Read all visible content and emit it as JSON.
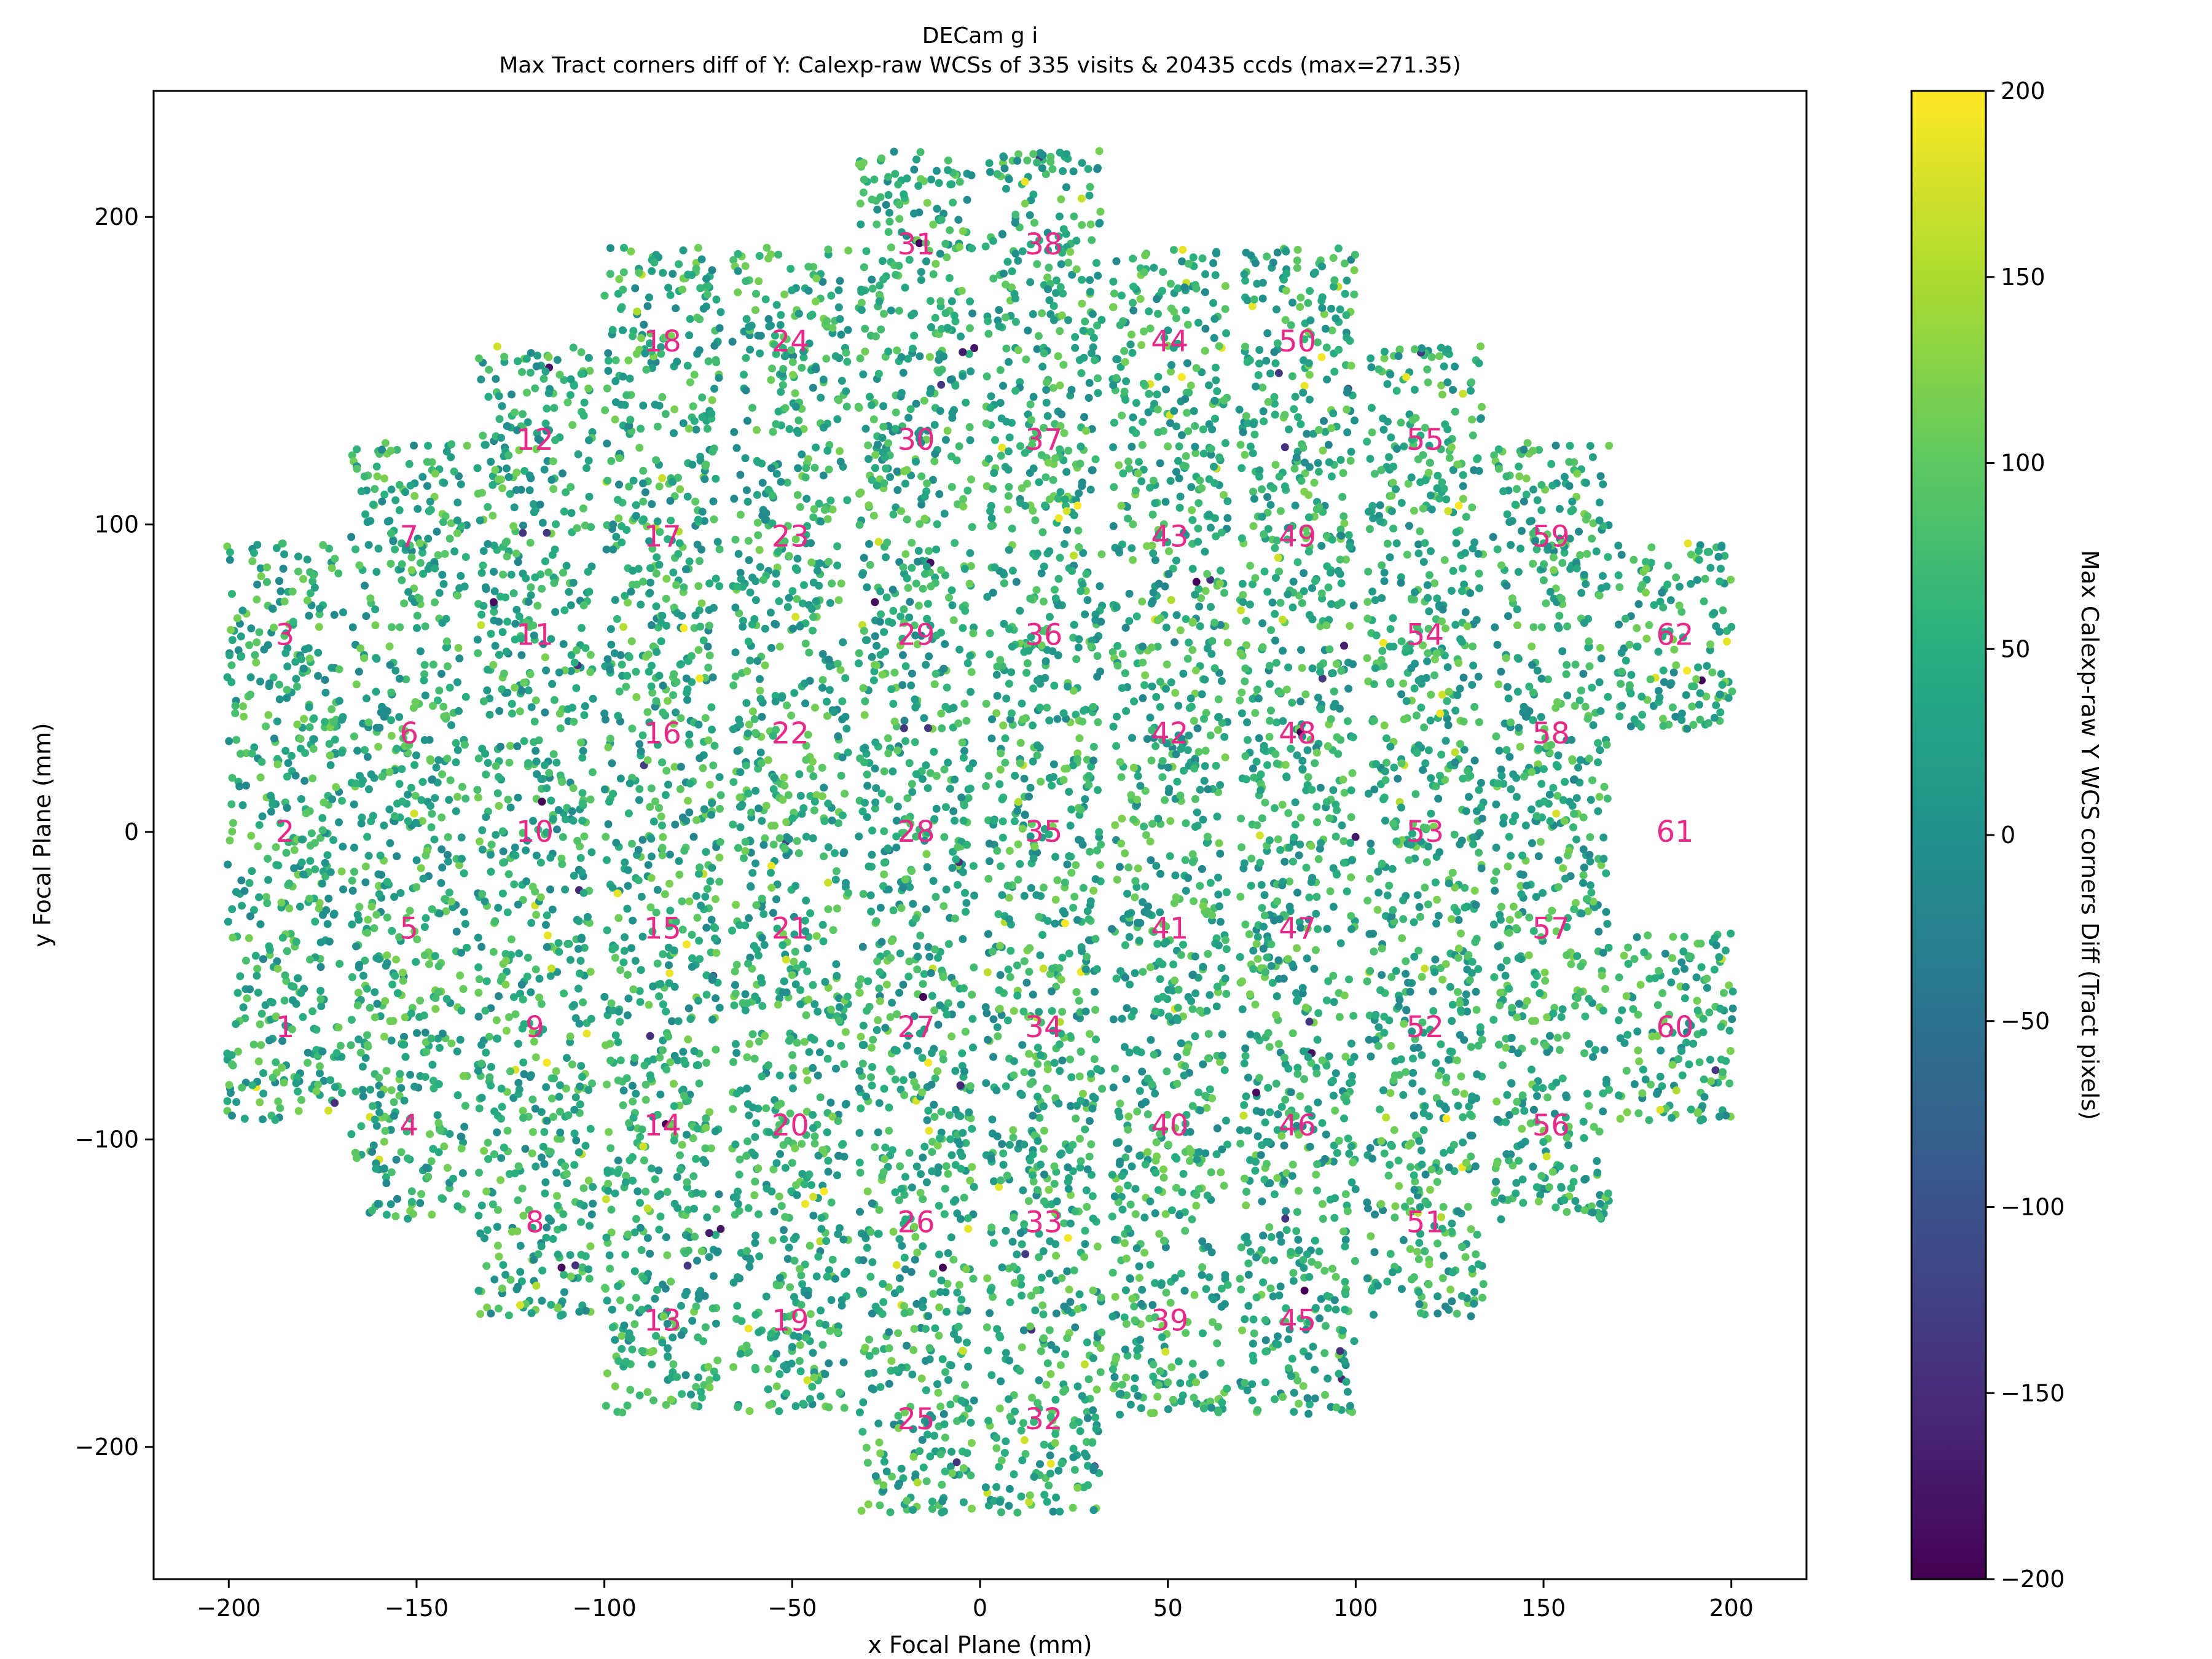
{
  "chart_data": {
    "type": "scatter",
    "title": "DECam g i",
    "subtitle": "Max Tract corners diff of Y: Calexp-raw WCSs of 335 visits & 20435 ccds (max=271.35)",
    "xlabel": "x Focal Plane (mm)",
    "ylabel": "y Focal Plane (mm)",
    "xlim": [
      -220,
      220
    ],
    "ylim": [
      -243,
      241
    ],
    "xticks": [
      -200,
      -150,
      -100,
      -50,
      0,
      50,
      100,
      150,
      200
    ],
    "yticks": [
      -200,
      -100,
      0,
      100,
      200
    ],
    "xtick_labels": [
      "−200",
      "−150",
      "−100",
      "−50",
      "0",
      "50",
      "100",
      "150",
      "200"
    ],
    "ytick_labels": [
      "−200",
      "−100",
      "0",
      "100",
      "200"
    ],
    "grid": false,
    "colorbar": {
      "label": "Max Calexp-raw Y WCS corners Diff (Tract pixels)",
      "range": [
        -200,
        200
      ],
      "ticks": [
        -200,
        -150,
        -100,
        -50,
        0,
        50,
        100,
        150,
        200
      ],
      "tick_labels": [
        "−200",
        "−150",
        "−100",
        "−50",
        "0",
        "50",
        "100",
        "150",
        "200"
      ],
      "colormap": "viridis"
    },
    "ccds": [
      {
        "id": 1,
        "x": -185,
        "y": -63.5
      },
      {
        "id": 2,
        "x": -185,
        "y": 0
      },
      {
        "id": 3,
        "x": -185,
        "y": 64
      },
      {
        "id": 4,
        "x": -152,
        "y": -95.5
      },
      {
        "id": 5,
        "x": -152,
        "y": -31.5
      },
      {
        "id": 6,
        "x": -152,
        "y": 32
      },
      {
        "id": 7,
        "x": -152,
        "y": 96
      },
      {
        "id": 8,
        "x": -118.5,
        "y": -127
      },
      {
        "id": 9,
        "x": -118.5,
        "y": -63.5
      },
      {
        "id": 10,
        "x": -118.5,
        "y": 0
      },
      {
        "id": 11,
        "x": -118.5,
        "y": 64
      },
      {
        "id": 12,
        "x": -118.5,
        "y": 127.5
      },
      {
        "id": 13,
        "x": -84.5,
        "y": -159
      },
      {
        "id": 14,
        "x": -84.5,
        "y": -95.5
      },
      {
        "id": 15,
        "x": -84.5,
        "y": -31.5
      },
      {
        "id": 16,
        "x": -84.5,
        "y": 32
      },
      {
        "id": 17,
        "x": -84.5,
        "y": 96
      },
      {
        "id": 18,
        "x": -84.5,
        "y": 159.5
      },
      {
        "id": 19,
        "x": -50.5,
        "y": -159
      },
      {
        "id": 20,
        "x": -50.5,
        "y": -95.5
      },
      {
        "id": 21,
        "x": -50.5,
        "y": -31.5
      },
      {
        "id": 22,
        "x": -50.5,
        "y": 32
      },
      {
        "id": 23,
        "x": -50.5,
        "y": 96
      },
      {
        "id": 24,
        "x": -50.5,
        "y": 159.5
      },
      {
        "id": 25,
        "x": -17,
        "y": -191
      },
      {
        "id": 26,
        "x": -17,
        "y": -127
      },
      {
        "id": 27,
        "x": -17,
        "y": -63.5
      },
      {
        "id": 28,
        "x": -17,
        "y": 0
      },
      {
        "id": 29,
        "x": -17,
        "y": 64
      },
      {
        "id": 30,
        "x": -17,
        "y": 127.5
      },
      {
        "id": 31,
        "x": -17,
        "y": 191
      },
      {
        "id": 32,
        "x": 17,
        "y": -191
      },
      {
        "id": 33,
        "x": 17,
        "y": -127
      },
      {
        "id": 34,
        "x": 17,
        "y": -63.5
      },
      {
        "id": 35,
        "x": 17,
        "y": 0
      },
      {
        "id": 36,
        "x": 17,
        "y": 64
      },
      {
        "id": 37,
        "x": 17,
        "y": 127.5
      },
      {
        "id": 38,
        "x": 17,
        "y": 191
      },
      {
        "id": 39,
        "x": 50.5,
        "y": -159
      },
      {
        "id": 40,
        "x": 50.5,
        "y": -95.5
      },
      {
        "id": 41,
        "x": 50.5,
        "y": -31.5
      },
      {
        "id": 42,
        "x": 50.5,
        "y": 32
      },
      {
        "id": 43,
        "x": 50.5,
        "y": 96
      },
      {
        "id": 44,
        "x": 50.5,
        "y": 159.5
      },
      {
        "id": 45,
        "x": 84.5,
        "y": -159
      },
      {
        "id": 46,
        "x": 84.5,
        "y": -95.5
      },
      {
        "id": 47,
        "x": 84.5,
        "y": -31.5
      },
      {
        "id": 48,
        "x": 84.5,
        "y": 32
      },
      {
        "id": 49,
        "x": 84.5,
        "y": 96
      },
      {
        "id": 50,
        "x": 84.5,
        "y": 159.5
      },
      {
        "id": 51,
        "x": 118.5,
        "y": -127
      },
      {
        "id": 52,
        "x": 118.5,
        "y": -63.5
      },
      {
        "id": 53,
        "x": 118.5,
        "y": 0
      },
      {
        "id": 54,
        "x": 118.5,
        "y": 64
      },
      {
        "id": 55,
        "x": 118.5,
        "y": 127.5
      },
      {
        "id": 56,
        "x": 152,
        "y": -95.5
      },
      {
        "id": 57,
        "x": 152,
        "y": -31.5
      },
      {
        "id": 58,
        "x": 152,
        "y": 32
      },
      {
        "id": 59,
        "x": 152,
        "y": 96
      },
      {
        "id": 60,
        "x": 185,
        "y": -63.5
      },
      {
        "id": 61,
        "x": 185,
        "y": 0,
        "empty": true
      },
      {
        "id": 62,
        "x": 185,
        "y": 64
      }
    ],
    "ccd_width_mm": 31,
    "ccd_height_mm": 61,
    "typical_value_range": [
      -20,
      120
    ],
    "label_color": "#e7298a"
  }
}
